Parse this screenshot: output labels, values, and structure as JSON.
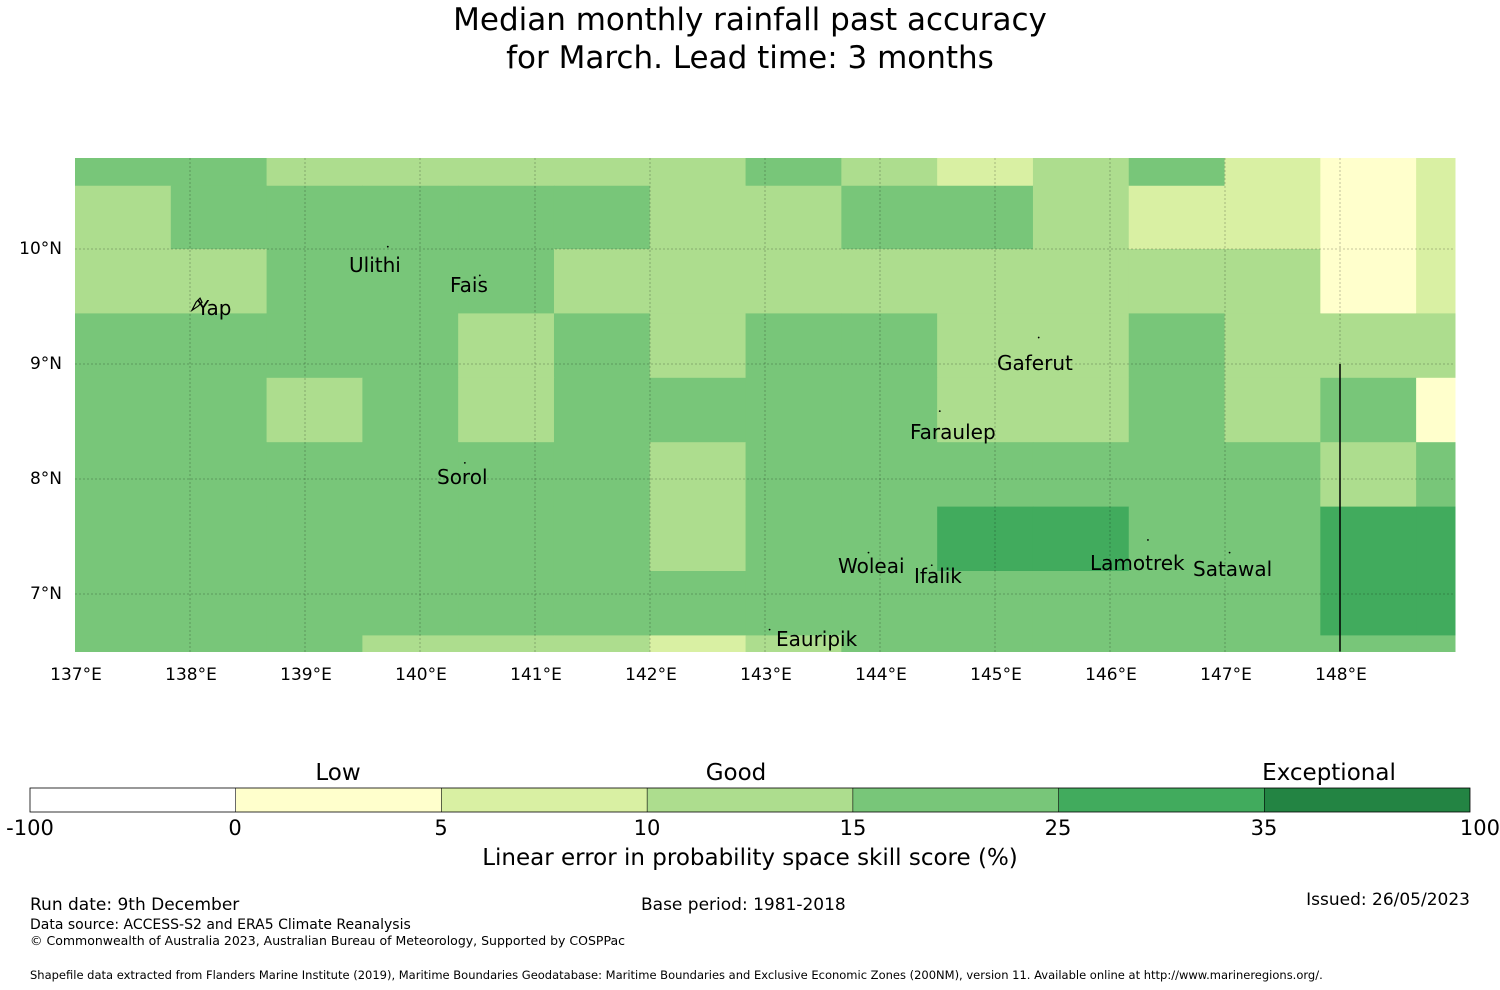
{
  "title": {
    "line1": "Median monthly rainfall past accuracy",
    "line2": "for March. Lead time: 3 months"
  },
  "map": {
    "lat_labels": [
      "10°N",
      "9°N",
      "8°N",
      "7°N"
    ],
    "lon_labels": [
      "137°E",
      "138°E",
      "139°E",
      "140°E",
      "141°E",
      "142°E",
      "143°E",
      "144°E",
      "145°E",
      "146°E",
      "147°E",
      "148°E"
    ],
    "lat_range": [
      6.5,
      10.8
    ],
    "lon_range": [
      137.0,
      149.0
    ],
    "grid_lon_start": 137.0,
    "grid_lon_step": 0.833,
    "grid_lat_rows": [
      {
        "top": 10.8,
        "bottom": 10.55
      },
      {
        "top": 10.55,
        "bottom": 10.0
      },
      {
        "top": 10.0,
        "bottom": 9.44
      },
      {
        "top": 9.44,
        "bottom": 8.88
      },
      {
        "top": 8.88,
        "bottom": 8.32
      },
      {
        "top": 8.32,
        "bottom": 7.76
      },
      {
        "top": 7.76,
        "bottom": 7.2
      },
      {
        "top": 7.2,
        "bottom": 6.64
      },
      {
        "top": 6.64,
        "bottom": 6.5
      }
    ],
    "cell_categories": [
      [
        4,
        4,
        3,
        3,
        3,
        3,
        3,
        4,
        3,
        2,
        3,
        4,
        2,
        1,
        2
      ],
      [
        3,
        4,
        4,
        4,
        4,
        4,
        3,
        3,
        4,
        4,
        3,
        2,
        2,
        1,
        2
      ],
      [
        3,
        3,
        4,
        4,
        4,
        3,
        3,
        3,
        3,
        3,
        3,
        3,
        3,
        1,
        2
      ],
      [
        4,
        4,
        4,
        4,
        3,
        4,
        3,
        4,
        4,
        3,
        3,
        4,
        3,
        3,
        3
      ],
      [
        4,
        4,
        3,
        4,
        3,
        4,
        4,
        4,
        4,
        3,
        3,
        4,
        3,
        4,
        1
      ],
      [
        4,
        4,
        4,
        4,
        4,
        4,
        3,
        4,
        4,
        4,
        4,
        4,
        4,
        3,
        4
      ],
      [
        4,
        4,
        4,
        4,
        4,
        4,
        3,
        4,
        4,
        5,
        5,
        4,
        4,
        5,
        5
      ],
      [
        4,
        4,
        4,
        4,
        4,
        4,
        4,
        4,
        4,
        4,
        4,
        4,
        4,
        5,
        5
      ],
      [
        4,
        4,
        4,
        3,
        3,
        3,
        2,
        3,
        4,
        4,
        4,
        4,
        4,
        4,
        4
      ]
    ],
    "places": [
      {
        "name": "Yap",
        "lon": 138.07,
        "lat": 9.52
      },
      {
        "name": "Ulithi",
        "lon": 139.72,
        "lat": 10.02
      },
      {
        "name": "Fais",
        "lon": 140.52,
        "lat": 9.77
      },
      {
        "name": "Gaferut",
        "lon": 145.38,
        "lat": 9.23
      },
      {
        "name": "Faraulep",
        "lon": 144.52,
        "lat": 8.59
      },
      {
        "name": "Sorol",
        "lon": 140.39,
        "lat": 8.14
      },
      {
        "name": "Woleai",
        "lon": 143.9,
        "lat": 7.36
      },
      {
        "name": "Ifalik",
        "lon": 144.45,
        "lat": 7.25
      },
      {
        "name": "Lamotrek",
        "lon": 146.33,
        "lat": 7.47
      },
      {
        "name": "Satawal",
        "lon": 147.04,
        "lat": 7.36
      },
      {
        "name": "Eauripik",
        "lon": 143.04,
        "lat": 6.69
      }
    ],
    "boundary_line": {
      "lon": 148.0,
      "lat_from": 9.0,
      "lat_to": 6.5
    }
  },
  "colorbar": {
    "categories": [
      "Low",
      "Good",
      "Exceptional"
    ],
    "ticks": [
      "-100",
      "0",
      "5",
      "10",
      "15",
      "25",
      "35",
      "100"
    ],
    "colors": [
      "#ffffff",
      "#ffffcc",
      "#d9f0a3",
      "#addd8e",
      "#78c679",
      "#41ab5d",
      "#238443"
    ],
    "title": "Linear error in probability space skill score (%)"
  },
  "footer": {
    "run_date": "Run date: 9th December",
    "data_source": "Data source: ACCESS-S2 and ERA5 Climate Reanalysis",
    "copyright": "© Commonwealth of Australia 2023, Australian Bureau of Meteorology, Supported by COSPPac",
    "base_period": "Base period: 1981-2018",
    "issued": "Issued: 26/05/2023",
    "shapefile": "Shapefile data extracted from Flanders Marine Institute (2019), Maritime Boundaries Geodatabase: Maritime Boundaries and Exclusive Economic Zones (200NM), version 11. Available online at http://www.marineregions.org/."
  }
}
